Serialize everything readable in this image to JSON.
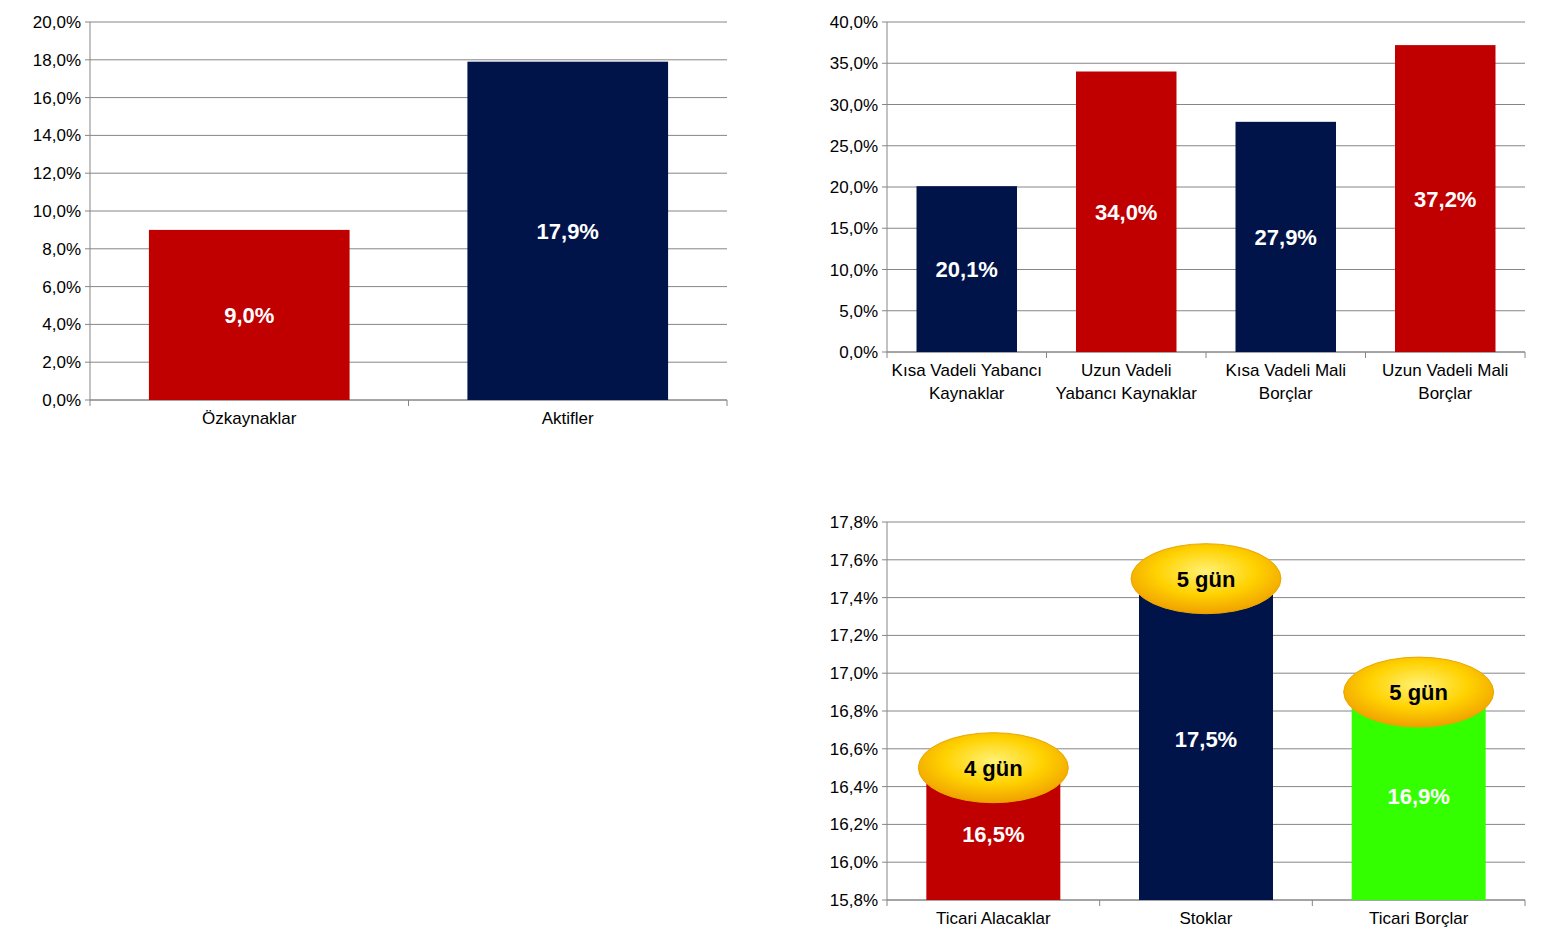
{
  "chart_data": [
    {
      "type": "bar",
      "categories": [
        "Özkaynaklar",
        "Aktifler"
      ],
      "values": [
        9.0,
        17.9
      ],
      "value_labels": [
        "9,0%",
        "17,9%"
      ],
      "colors": [
        "#c00000",
        "#00144a"
      ],
      "ylim": [
        0,
        20
      ],
      "yticks": [
        {
          "value": 0,
          "label": "0,0%"
        },
        {
          "value": 2,
          "label": "2,0%"
        },
        {
          "value": 4,
          "label": "4,0%"
        },
        {
          "value": 6,
          "label": "6,0%"
        },
        {
          "value": 8,
          "label": "8,0%"
        },
        {
          "value": 10,
          "label": "10,0%"
        },
        {
          "value": 12,
          "label": "12,0%"
        },
        {
          "value": 14,
          "label": "14,0%"
        },
        {
          "value": 16,
          "label": "16,0%"
        },
        {
          "value": 18,
          "label": "18,0%"
        },
        {
          "value": 20,
          "label": "20,0%"
        }
      ],
      "grid": true,
      "data_labels": true
    },
    {
      "type": "bar",
      "categories": [
        "Kısa Vadeli Yabancı Kaynaklar",
        "Uzun Vadeli Yabancı Kaynaklar",
        "Kısa Vadeli Mali Borçlar",
        "Uzun Vadeli Mali Borçlar"
      ],
      "values": [
        20.1,
        34.0,
        27.9,
        37.2
      ],
      "value_labels": [
        "20,1%",
        "34,0%",
        "27,9%",
        "37,2%"
      ],
      "colors": [
        "#00144a",
        "#c00000",
        "#00144a",
        "#c00000"
      ],
      "ylim": [
        0,
        40
      ],
      "yticks": [
        {
          "value": 0,
          "label": "0,0%"
        },
        {
          "value": 5,
          "label": "5,0%"
        },
        {
          "value": 10,
          "label": "10,0%"
        },
        {
          "value": 15,
          "label": "15,0%"
        },
        {
          "value": 20,
          "label": "20,0%"
        },
        {
          "value": 25,
          "label": "25,0%"
        },
        {
          "value": 30,
          "label": "30,0%"
        },
        {
          "value": 35,
          "label": "35,0%"
        },
        {
          "value": 40,
          "label": "40,0%"
        }
      ],
      "grid": true,
      "data_labels": true
    },
    {
      "type": "bar",
      "categories": [
        "Ticari Alacaklar",
        "Stoklar",
        "Ticari Borçlar"
      ],
      "values": [
        16.5,
        17.5,
        16.9
      ],
      "value_labels": [
        "16,5%",
        "17,5%",
        "16,9%"
      ],
      "annotations": [
        "4 gün",
        "5 gün",
        "5 gün"
      ],
      "colors": [
        "#c00000",
        "#00144a",
        "#33ff00"
      ],
      "ylim": [
        15.8,
        17.8
      ],
      "yticks": [
        {
          "value": 15.8,
          "label": "15,8%"
        },
        {
          "value": 16.0,
          "label": "16,0%"
        },
        {
          "value": 16.2,
          "label": "16,2%"
        },
        {
          "value": 16.4,
          "label": "16,4%"
        },
        {
          "value": 16.6,
          "label": "16,6%"
        },
        {
          "value": 16.8,
          "label": "16,8%"
        },
        {
          "value": 17.0,
          "label": "17,0%"
        },
        {
          "value": 17.2,
          "label": "17,2%"
        },
        {
          "value": 17.4,
          "label": "17,4%"
        },
        {
          "value": 17.6,
          "label": "17,6%"
        },
        {
          "value": 17.8,
          "label": "17,8%"
        }
      ],
      "grid": true,
      "data_labels": true
    }
  ]
}
